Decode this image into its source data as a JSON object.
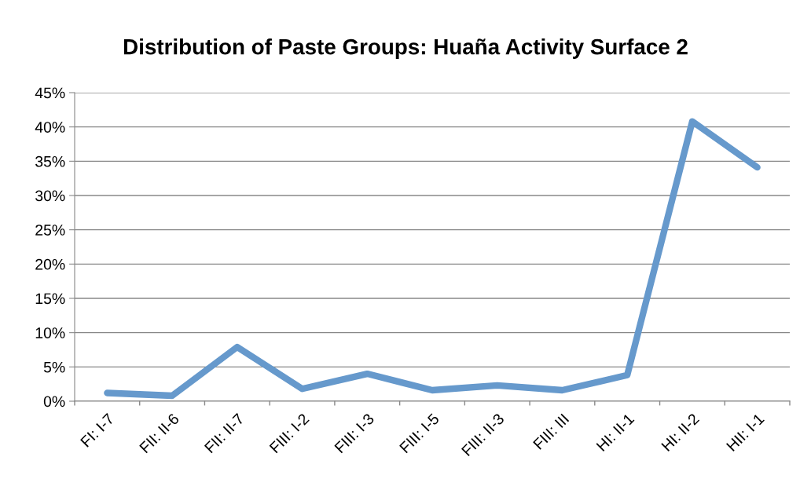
{
  "chart_data": {
    "type": "line",
    "title": "Distribution of Paste Groups: Huaña Activity Surface 2",
    "categories": [
      "FI: I-7",
      "FII: II-6",
      "FII: II-7",
      "FIII: I-2",
      "FIII: I-3",
      "FIII: I-5",
      "FIII: II-3",
      "FIII: III",
      "HI: II-1",
      "HI: II-2",
      "HII: I-1"
    ],
    "series": [
      {
        "color": "#6699cc",
        "values": [
          1.2,
          0.8,
          7.9,
          1.8,
          4.0,
          1.6,
          2.3,
          1.6,
          3.8,
          40.8,
          34.1
        ]
      }
    ],
    "ylim": [
      0,
      45
    ],
    "yticks": [
      {
        "value": 0,
        "label": "0%"
      },
      {
        "value": 5,
        "label": "5%"
      },
      {
        "value": 10,
        "label": "10%"
      },
      {
        "value": 15,
        "label": "15%"
      },
      {
        "value": 20,
        "label": "20%"
      },
      {
        "value": 25,
        "label": "25%"
      },
      {
        "value": 30,
        "label": "30%"
      },
      {
        "value": 35,
        "label": "35%"
      },
      {
        "value": 40,
        "label": "40%"
      },
      {
        "value": 45,
        "label": "45%"
      }
    ],
    "grid": "y",
    "legend": false,
    "marker": "none",
    "line_style": "solid"
  }
}
